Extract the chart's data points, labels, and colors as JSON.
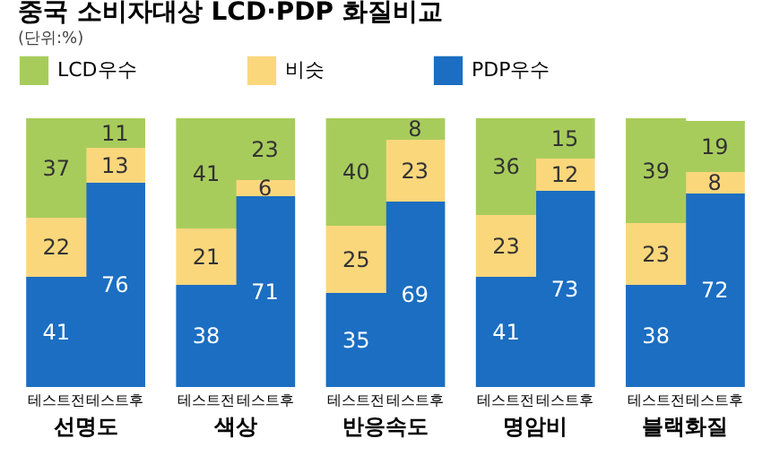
{
  "chart_data": {
    "type": "bar",
    "title": "중국 소비자대상 LCD·PDP 화질비교",
    "subtitle": "(단위:%)",
    "stacked": true,
    "data_labels": true,
    "legend": "top",
    "categories": [
      "테스트전",
      "테스트후",
      "테스트전",
      "테스트후",
      "테스트전",
      "테스트후",
      "테스트전",
      "테스트후",
      "테스트전",
      "테스트후"
    ],
    "annotations": [
      "선명도",
      "색상",
      "반응속도",
      "명암비",
      "블랙화질"
    ],
    "series": [
      {
        "name": "PDP우수",
        "color": "#1b6ec2",
        "values": [
          41,
          76,
          38,
          71,
          35,
          69,
          41,
          73,
          38,
          72
        ]
      },
      {
        "name": "비슷",
        "color": "#fbd77c",
        "values": [
          22,
          13,
          21,
          6,
          25,
          23,
          23,
          12,
          23,
          8
        ]
      },
      {
        "name": "LCD우수",
        "color": "#a8cc5c",
        "values": [
          37,
          11,
          41,
          23,
          40,
          8,
          36,
          15,
          39,
          19
        ]
      }
    ]
  }
}
